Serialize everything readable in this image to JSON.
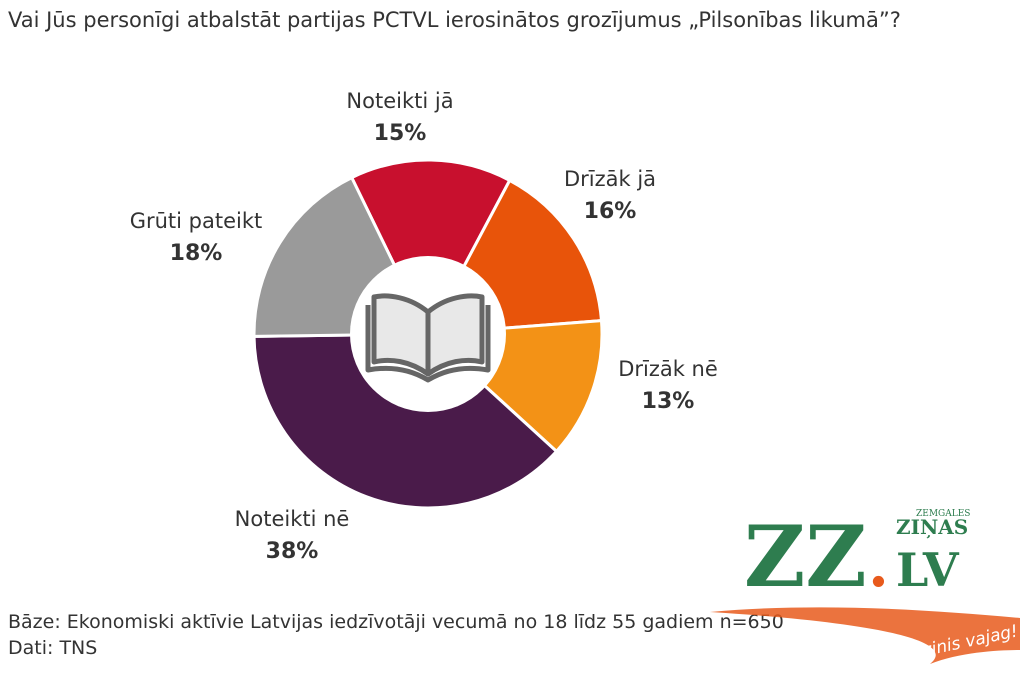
{
  "chart_data": {
    "type": "pie",
    "title": "Vai Jūs personīgi atbalstāt partijas PCTVL ierosinātos grozījumus „Pilsonības likumā”?",
    "slices": [
      {
        "label": "Noteikti jā",
        "value": 15,
        "value_label": "15%",
        "color": "#c8102e"
      },
      {
        "label": "Drīzāk jā",
        "value": 16,
        "value_label": "16%",
        "color": "#e8540a"
      },
      {
        "label": "Drīzāk nē",
        "value": 13,
        "value_label": "13%",
        "color": "#f39216"
      },
      {
        "label": "Noteikti nē",
        "value": 38,
        "value_label": "38%",
        "color": "#4a1b4a"
      },
      {
        "label": "Grūti pateikt",
        "value": 18,
        "value_label": "18%",
        "color": "#9a9a9a"
      }
    ],
    "center_icon": "book-icon"
  },
  "footer": {
    "base": "Bāze: Ekonomiski aktīvie Latvijas iedzīvotāji vecumā no 18 līdz 55 gadiem n=650",
    "source": "Dati: TNS"
  },
  "logo": {
    "main": "ZZ",
    "dot": ".",
    "tld": "LV",
    "small_top": "ZEMGALES",
    "small_name": "ZIŅAS",
    "slogan": "zinis vajag!",
    "green": "#2e7d4f",
    "orange": "#e85a1c"
  }
}
